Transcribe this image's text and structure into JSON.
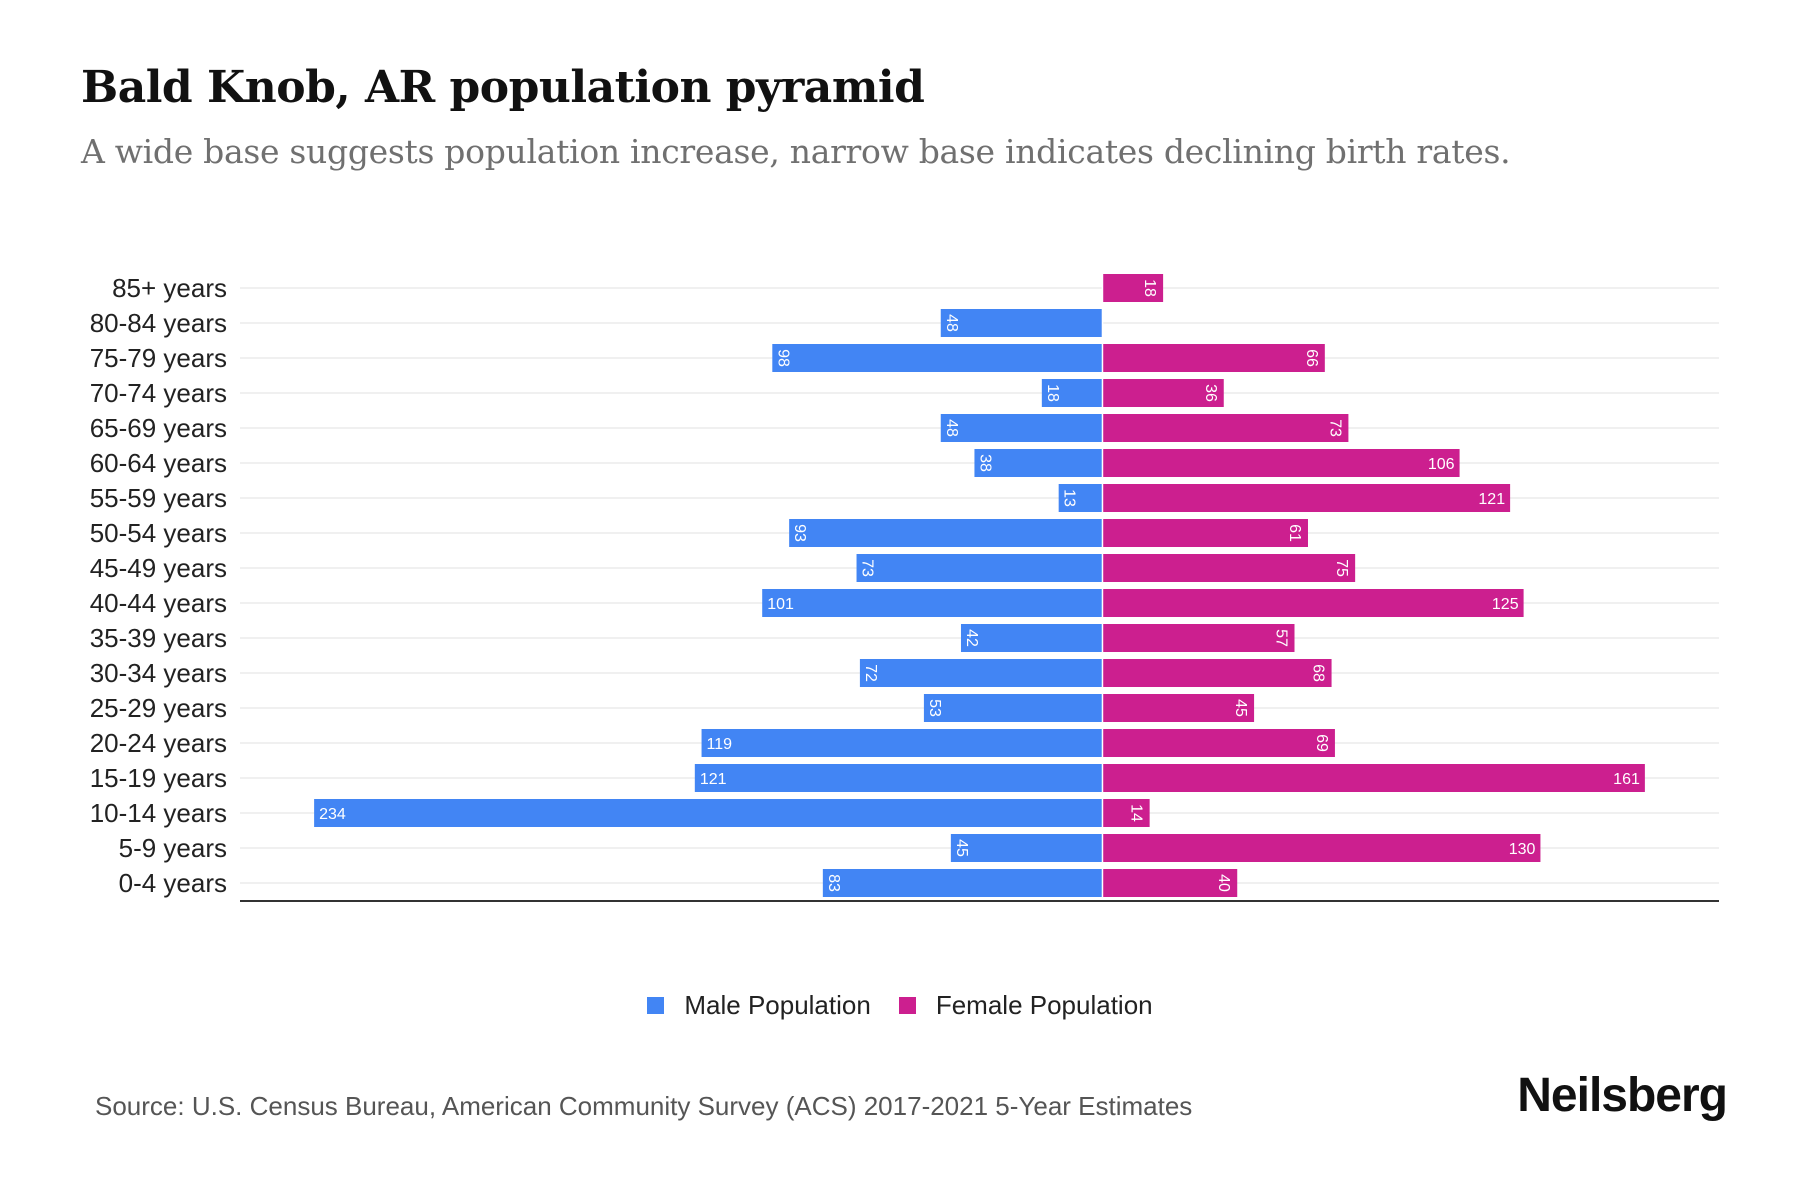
{
  "header": {
    "title": "Bald Knob, AR population pyramid",
    "subtitle": "A wide base suggests population increase, narrow base indicates declining birth rates."
  },
  "legend": {
    "male_label": "Male Population",
    "female_label": "Female Population"
  },
  "footer": {
    "source": "Source: U.S. Census Bureau, American Community Survey (ACS) 2017-2021 5-Year Estimates",
    "logo": "Neilsberg"
  },
  "colors": {
    "male": "#4285f4",
    "female": "#cc1f8f"
  },
  "chart_data": {
    "type": "bar",
    "orientation": "horizontal-diverging",
    "title": "Bald Knob, AR population pyramid",
    "subtitle": "A wide base suggests population increase, narrow base indicates declining birth rates.",
    "xlabel": "",
    "ylabel": "",
    "categories": [
      "85+ years",
      "80-84 years",
      "75-79 years",
      "70-74 years",
      "65-69 years",
      "60-64 years",
      "55-59 years",
      "50-54 years",
      "45-49 years",
      "40-44 years",
      "35-39 years",
      "30-34 years",
      "25-29 years",
      "20-24 years",
      "15-19 years",
      "10-14 years",
      "5-9 years",
      "0-4 years"
    ],
    "series": [
      {
        "name": "Male Population",
        "side": "left",
        "values": [
          0,
          48,
          98,
          18,
          48,
          38,
          13,
          93,
          73,
          101,
          42,
          72,
          53,
          119,
          121,
          234,
          45,
          83
        ]
      },
      {
        "name": "Female Population",
        "side": "right",
        "values": [
          18,
          0,
          66,
          36,
          73,
          106,
          121,
          61,
          75,
          125,
          57,
          68,
          45,
          69,
          161,
          14,
          130,
          40
        ]
      }
    ],
    "xlim": [
      -256,
      183
    ],
    "grid": true,
    "legend_position": "bottom-center",
    "data_labels": true
  }
}
